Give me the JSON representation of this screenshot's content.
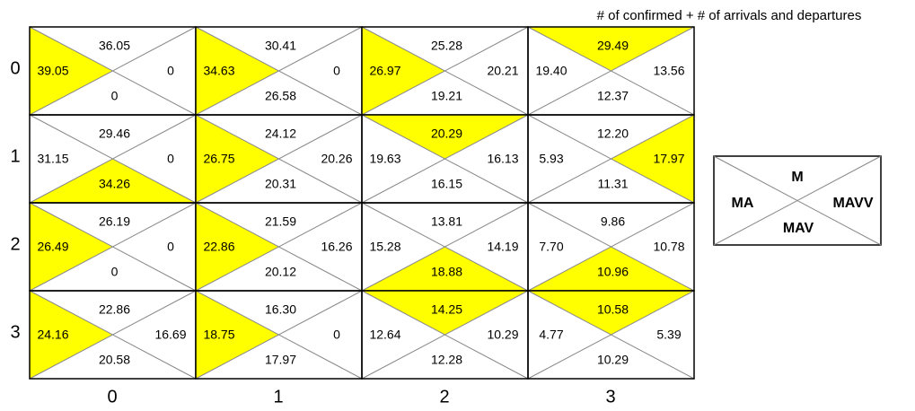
{
  "title": "# of confirmed + # of arrivals and departures",
  "colors": {
    "highlight": "#ffff00",
    "border": "#000000",
    "diagonal": "#888888"
  },
  "legend": {
    "top": "M",
    "left": "MA",
    "right": "MAVV",
    "bottom": "MAV"
  },
  "rows": [
    {
      "label": "0",
      "cells": [
        {
          "top": "36.05",
          "left": "39.05",
          "right": "0",
          "bottom": "0",
          "highlight": "left"
        },
        {
          "top": "30.41",
          "left": "34.63",
          "right": "0",
          "bottom": "26.58",
          "highlight": "left"
        },
        {
          "top": "25.28",
          "left": "26.97",
          "right": "20.21",
          "bottom": "19.21",
          "highlight": "left"
        },
        {
          "top": "29.49",
          "left": "19.40",
          "right": "13.56",
          "bottom": "12.37",
          "highlight": "top"
        }
      ]
    },
    {
      "label": "1",
      "cells": [
        {
          "top": "29.46",
          "left": "31.15",
          "right": "0",
          "bottom": "34.26",
          "highlight": "bottom"
        },
        {
          "top": "24.12",
          "left": "26.75",
          "right": "20.26",
          "bottom": "20.31",
          "highlight": "left"
        },
        {
          "top": "20.29",
          "left": "19.63",
          "right": "16.13",
          "bottom": "16.15",
          "highlight": "top"
        },
        {
          "top": "12.20",
          "left": "5.93",
          "right": "17.97",
          "bottom": "11.31",
          "highlight": "right"
        }
      ]
    },
    {
      "label": "2",
      "cells": [
        {
          "top": "26.19",
          "left": "26.49",
          "right": "0",
          "bottom": "0",
          "highlight": "left"
        },
        {
          "top": "21.59",
          "left": "22.86",
          "right": "16.26",
          "bottom": "20.12",
          "highlight": "left"
        },
        {
          "top": "13.81",
          "left": "15.28",
          "right": "14.19",
          "bottom": "18.88",
          "highlight": "bottom"
        },
        {
          "top": "9.86",
          "left": "7.70",
          "right": "10.78",
          "bottom": "10.96",
          "highlight": "bottom"
        }
      ]
    },
    {
      "label": "3",
      "cells": [
        {
          "top": "22.86",
          "left": "24.16",
          "right": "16.69",
          "bottom": "20.58",
          "highlight": "left"
        },
        {
          "top": "16.30",
          "left": "18.75",
          "right": "0",
          "bottom": "17.97",
          "highlight": "left"
        },
        {
          "top": "14.25",
          "left": "12.64",
          "right": "10.29",
          "bottom": "12.28",
          "highlight": "top"
        },
        {
          "top": "10.58",
          "left": "4.77",
          "right": "5.39",
          "bottom": "10.29",
          "highlight": "top"
        }
      ]
    }
  ],
  "columns": [
    "0",
    "1",
    "2",
    "3"
  ]
}
